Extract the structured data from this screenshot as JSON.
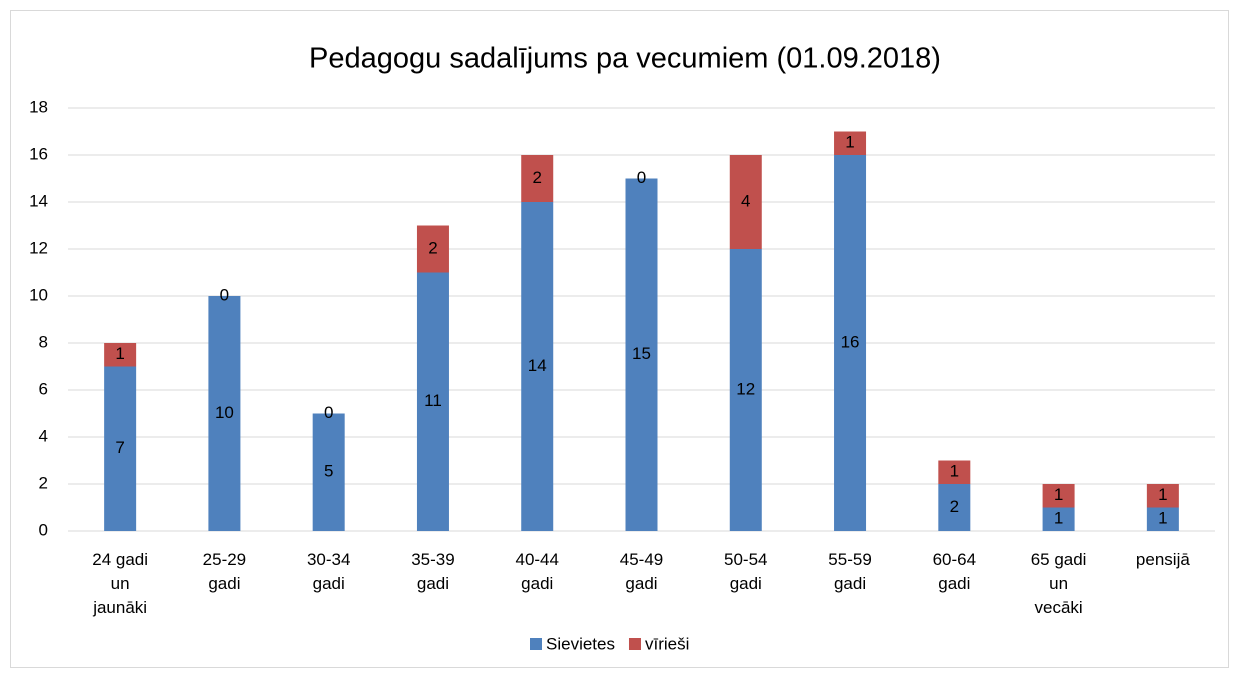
{
  "chart_data": {
    "type": "stacked_bar",
    "title": "Pedagogu  sadalījums pa vecumiem (01.09.2018)",
    "categories": [
      "24 gadi un jaunāki",
      "25-29 gadi",
      "30-34 gadi",
      "35-39 gadi",
      "40-44 gadi",
      "45-49 gadi",
      "50-54 gadi",
      "55-59 gadi",
      "60-64 gadi",
      "65 gadi un vecāki",
      "pensijā"
    ],
    "series": [
      {
        "name": "Sievietes",
        "color": "#4f81bd",
        "values": [
          7,
          10,
          5,
          11,
          14,
          15,
          12,
          16,
          2,
          1,
          1
        ]
      },
      {
        "name": "vīrieši",
        "color": "#c0504d",
        "values": [
          1,
          0,
          0,
          2,
          2,
          0,
          4,
          1,
          1,
          1,
          1
        ]
      }
    ],
    "ylim": [
      0,
      18
    ],
    "yticks": [
      0,
      2,
      4,
      6,
      8,
      10,
      12,
      14,
      16,
      18
    ],
    "grid": true,
    "legend": "bottom"
  }
}
